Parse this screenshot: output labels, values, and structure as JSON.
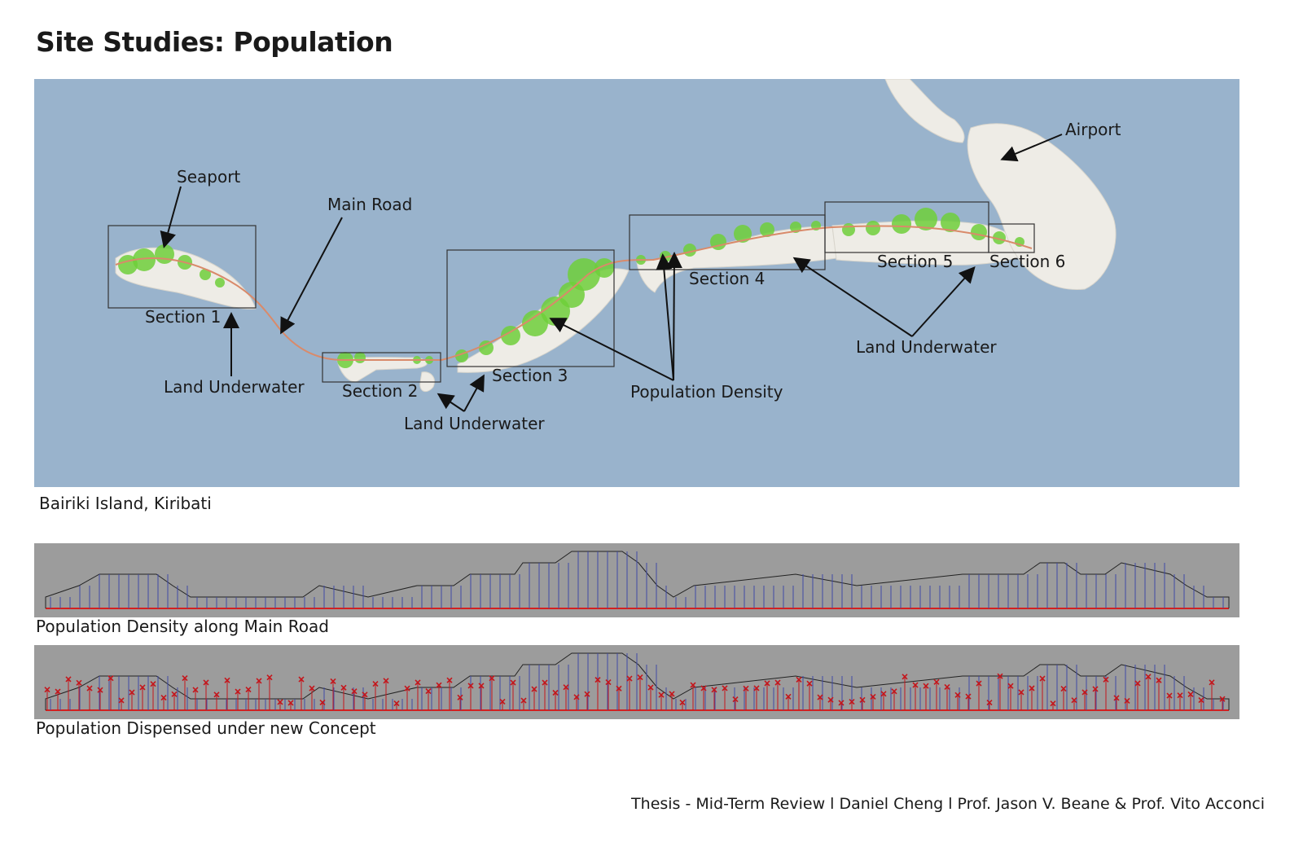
{
  "page": {
    "title": "Site Studies: Population",
    "map_caption": "Bairiki Island, Kiribati",
    "footer": "Thesis - Mid-Term Review l Daniel Cheng l  Prof. Jason V. Beane & Prof. Vito Acconci"
  },
  "map": {
    "labels": {
      "seaport": "Seaport",
      "main_road": "Main Road",
      "airport": "Airport",
      "section_1": "Section 1",
      "section_2": "Section 2",
      "section_3": "Section 3",
      "section_4": "Section 4",
      "section_5": "Section 5",
      "section_6": "Section 6",
      "land_underwater_1": "Land Underwater",
      "land_underwater_2": "Land Underwater",
      "land_underwater_3": "Land Underwater",
      "population_density": "Population Density"
    },
    "colors": {
      "water": "#99b3cc",
      "land": "#eeece6",
      "density": "#6fcf3a",
      "road": "#d98a6a"
    }
  },
  "strips": {
    "density_caption": "Population Density along Main Road",
    "dispensed_caption": "Population Dispensed under new Concept",
    "colors": {
      "background": "#9c9c9c",
      "bars": "#3f4aa6",
      "baseline": "#d42020",
      "marker": "#c4161c"
    }
  }
}
